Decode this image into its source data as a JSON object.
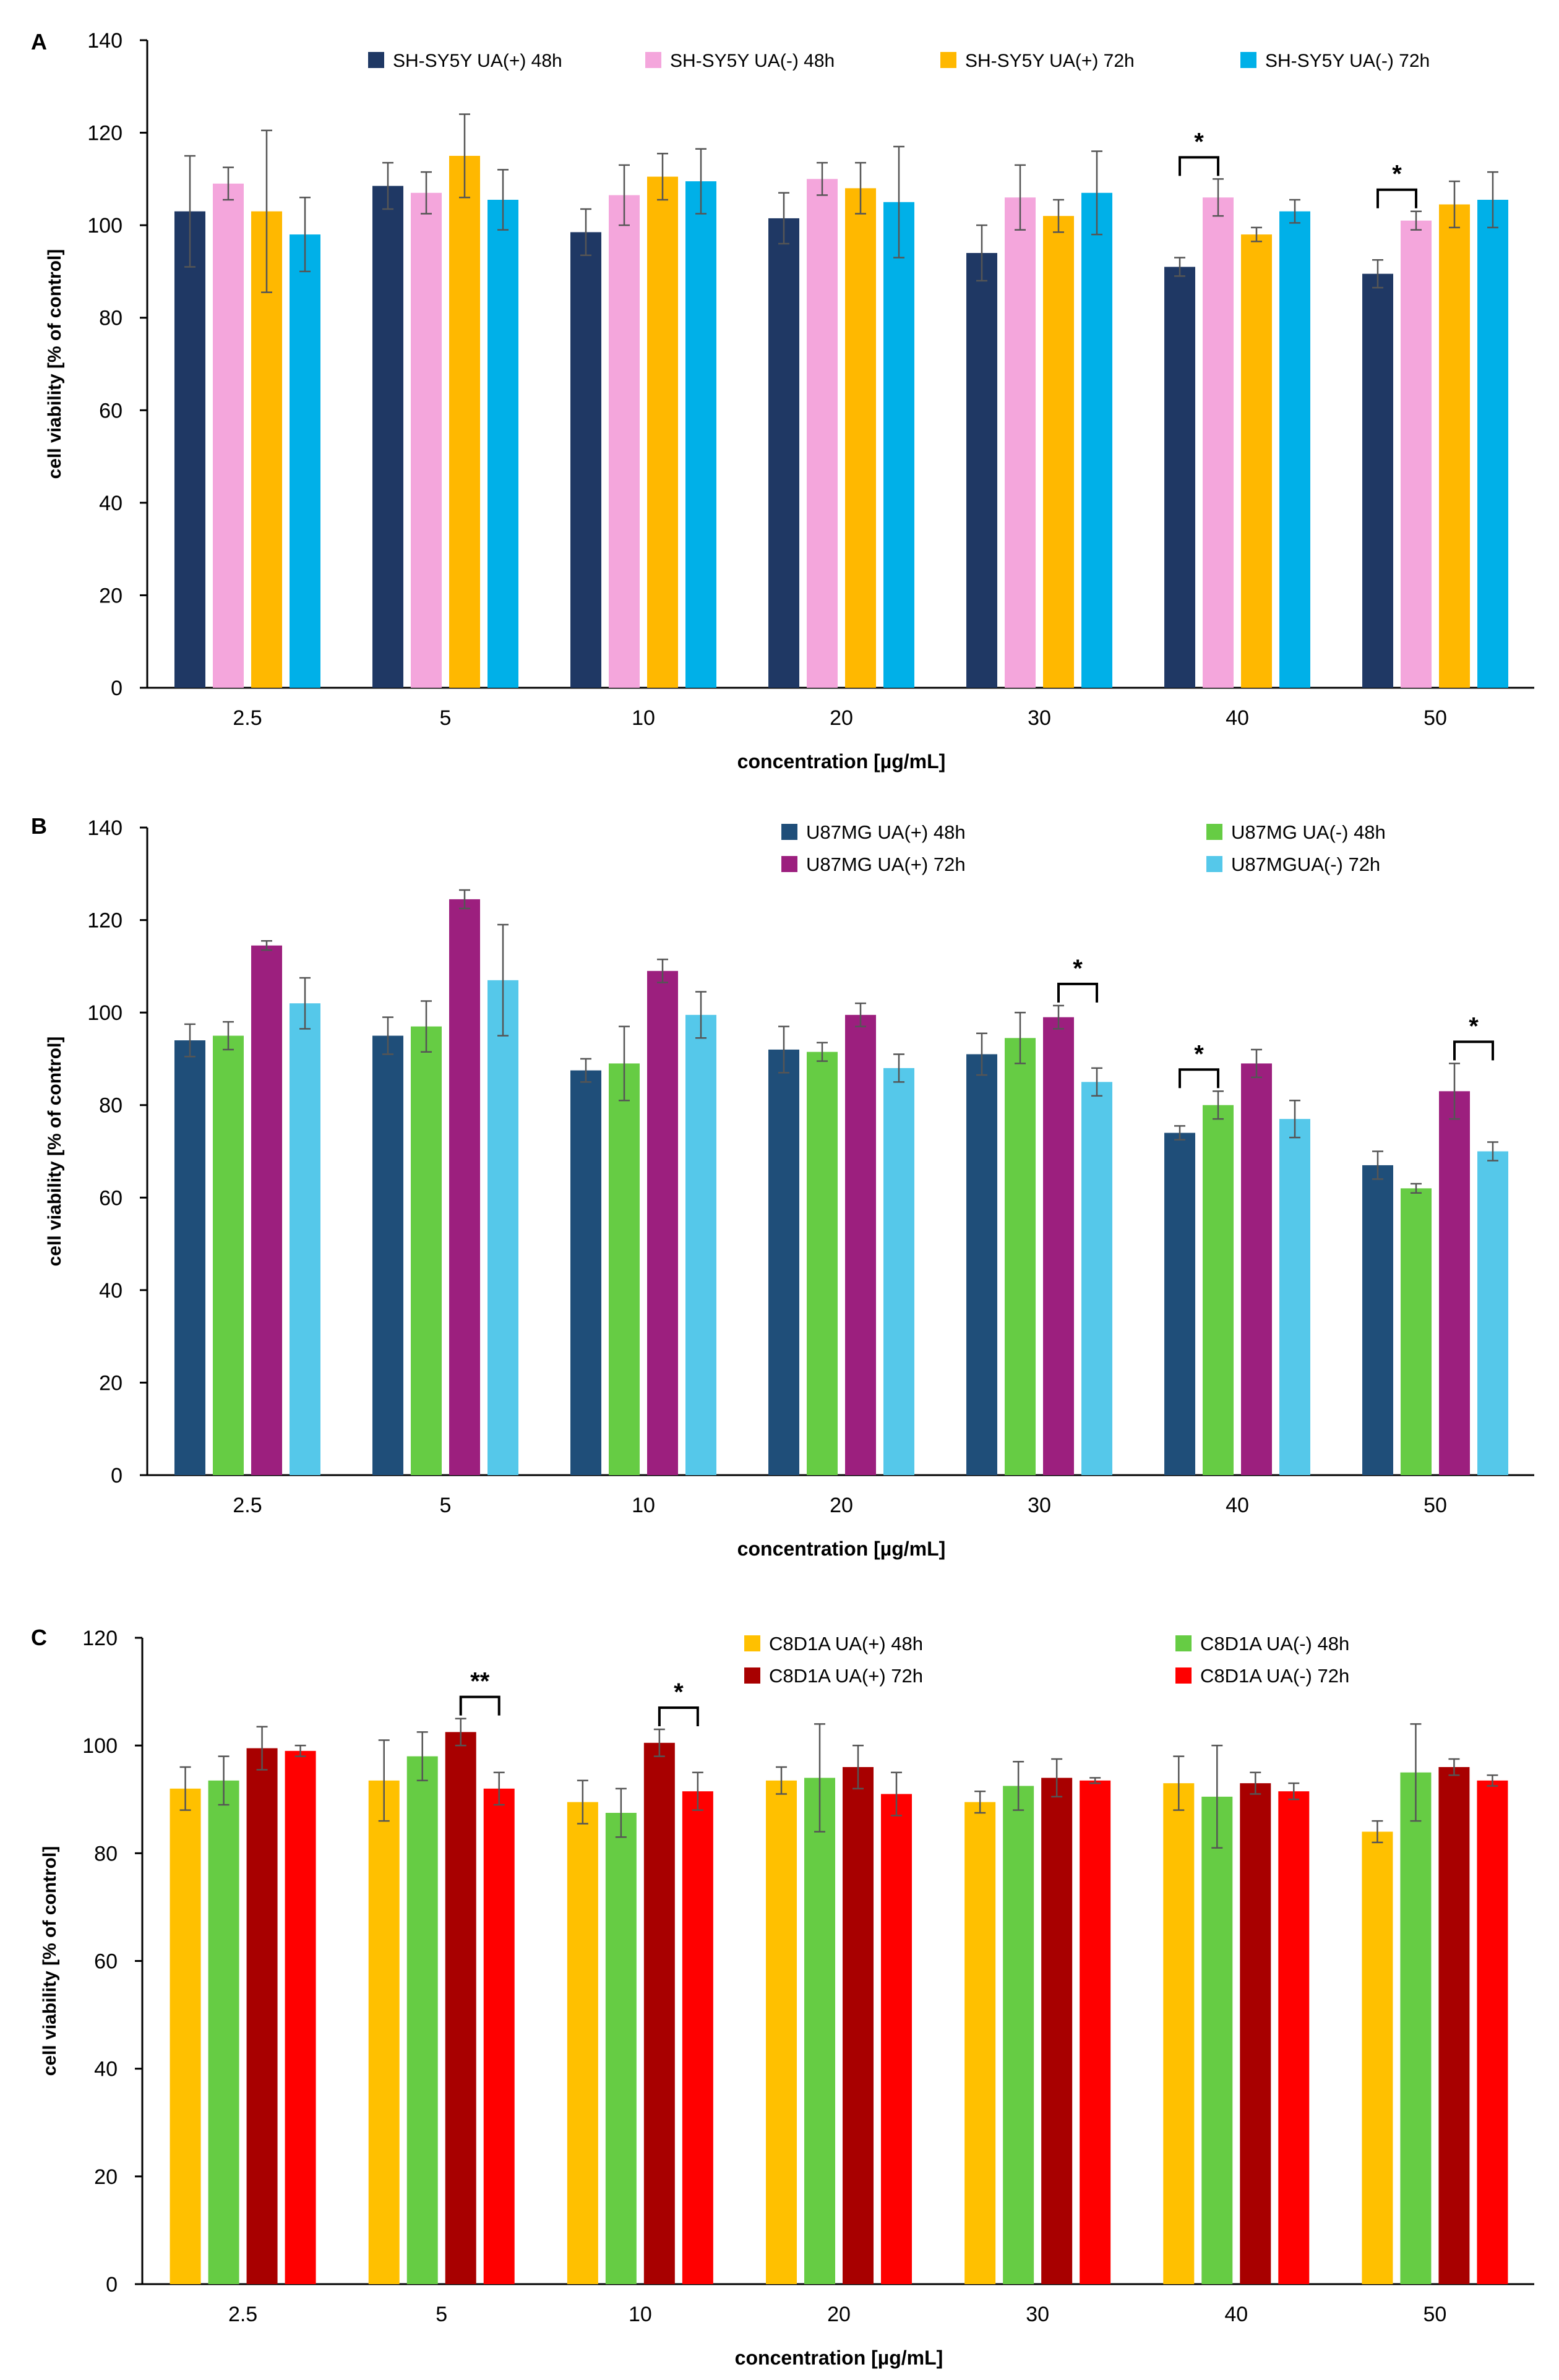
{
  "figure": {
    "panel_a_label": "A",
    "panel_b_label": "B",
    "panel_c_label": "C"
  },
  "chart_data": [
    {
      "panel": "A",
      "type": "bar",
      "title": "",
      "xlabel": "concentration [µg/mL]",
      "ylabel": "cell viability [% of control]",
      "ylim": [
        0,
        140
      ],
      "yticks": [
        0,
        20,
        40,
        60,
        80,
        100,
        120,
        140
      ],
      "grid": false,
      "legend_position": "top",
      "categories": [
        "2.5",
        "5",
        "10",
        "20",
        "30",
        "40",
        "50"
      ],
      "series": [
        {
          "name": "SH-SY5Y UA(+) 48h",
          "color": "#1f3864",
          "values": [
            103,
            108.5,
            98.5,
            101.5,
            94,
            91,
            89.5
          ],
          "errors": [
            12,
            5,
            5,
            5.5,
            6,
            2,
            3
          ]
        },
        {
          "name": "SH-SY5Y  UA(-) 48h",
          "color": "#f4a6dc",
          "values": [
            109,
            107,
            106.5,
            110,
            106,
            106,
            101
          ],
          "errors": [
            3.5,
            4.5,
            6.5,
            3.5,
            7,
            4,
            2
          ]
        },
        {
          "name": "SH-SY5Y  UA(+) 72h",
          "color": "#ffb800",
          "values": [
            103,
            115,
            110.5,
            108,
            102,
            98,
            104.5
          ],
          "errors": [
            17.5,
            9,
            5,
            5.5,
            3.5,
            1.5,
            5
          ]
        },
        {
          "name": "SH-SY5Y UA(-) 72h",
          "color": "#00b0e8",
          "values": [
            98,
            105.5,
            109.5,
            105,
            107,
            103,
            105.5
          ],
          "errors": [
            8,
            6.5,
            7,
            12,
            9,
            2.5,
            6
          ]
        }
      ],
      "significance": [
        {
          "category": "40",
          "between": [
            0,
            1
          ],
          "label": "*"
        },
        {
          "category": "50",
          "between": [
            0,
            1
          ],
          "label": "*"
        }
      ]
    },
    {
      "panel": "B",
      "type": "bar",
      "title": "",
      "xlabel": "concentration [µg/mL]",
      "ylabel": "cell viability [% of control]",
      "ylim": [
        0,
        140
      ],
      "yticks": [
        0,
        20,
        40,
        60,
        80,
        100,
        120,
        140
      ],
      "grid": false,
      "legend_position": "top-right",
      "categories": [
        "2.5",
        "5",
        "10",
        "20",
        "30",
        "40",
        "50"
      ],
      "series": [
        {
          "name": "U87MG UA(+) 48h",
          "color": "#1f4e79",
          "values": [
            94,
            95,
            87.5,
            92,
            91,
            74,
            67
          ],
          "errors": [
            3.5,
            4,
            2.5,
            5,
            4.5,
            1.5,
            3
          ]
        },
        {
          "name": "U87MG UA(-) 48h",
          "color": "#66cc44",
          "values": [
            95,
            97,
            89,
            91.5,
            94.5,
            80,
            62
          ],
          "errors": [
            3,
            5.5,
            8,
            2,
            5.5,
            3,
            1
          ]
        },
        {
          "name": "U87MG  UA(+) 72h",
          "color": "#9c1f7e",
          "values": [
            114.5,
            124.5,
            109,
            99.5,
            99,
            89,
            83
          ],
          "errors": [
            1,
            2,
            2.5,
            2.5,
            2.5,
            3,
            6
          ]
        },
        {
          "name": "U87MGUA(-) 72h",
          "color": "#55c8ea",
          "values": [
            102,
            107,
            99.5,
            88,
            85,
            77,
            70
          ],
          "errors": [
            5.5,
            12,
            5,
            3,
            3,
            4,
            2
          ]
        }
      ],
      "significance": [
        {
          "category": "30",
          "between": [
            2,
            3
          ],
          "label": "*"
        },
        {
          "category": "40",
          "between": [
            0,
            1
          ],
          "label": "*"
        },
        {
          "category": "50",
          "between": [
            2,
            3
          ],
          "label": "*"
        }
      ]
    },
    {
      "panel": "C",
      "type": "bar",
      "title": "",
      "xlabel": "concentration [µg/mL]",
      "ylabel": "cell viability [% of control]",
      "ylim": [
        0,
        120
      ],
      "yticks": [
        0,
        20,
        40,
        60,
        80,
        100,
        120
      ],
      "grid": false,
      "legend_position": "top-right",
      "categories": [
        "2.5",
        "5",
        "10",
        "20",
        "30",
        "40",
        "50"
      ],
      "series": [
        {
          "name": "C8D1A UA(+) 48h",
          "color": "#ffc000",
          "values": [
            92,
            93.5,
            89.5,
            93.5,
            89.5,
            93,
            84
          ],
          "errors": [
            4,
            7.5,
            4,
            2.5,
            2,
            5,
            2
          ]
        },
        {
          "name": "C8D1A  UA(-) 48h",
          "color": "#66cc44",
          "values": [
            93.5,
            98,
            87.5,
            94,
            92.5,
            90.5,
            95
          ],
          "errors": [
            4.5,
            4.5,
            4.5,
            10,
            4.5,
            9.5,
            9
          ]
        },
        {
          "name": "C8D1A  UA(+) 72h",
          "color": "#a80000",
          "values": [
            99.5,
            102.5,
            100.5,
            96,
            94,
            93,
            96
          ],
          "errors": [
            4,
            2.5,
            2.5,
            4,
            3.5,
            2,
            1.5
          ]
        },
        {
          "name": "C8D1A UA(-) 72h",
          "color": "#ff0000",
          "values": [
            99,
            92,
            91.5,
            91,
            93.5,
            91.5,
            93.5
          ],
          "errors": [
            1,
            3,
            3.5,
            4,
            0.5,
            1.5,
            1
          ]
        }
      ],
      "significance": [
        {
          "category": "5",
          "between": [
            2,
            3
          ],
          "label": "**"
        },
        {
          "category": "10",
          "between": [
            2,
            3
          ],
          "label": "*"
        }
      ]
    }
  ]
}
